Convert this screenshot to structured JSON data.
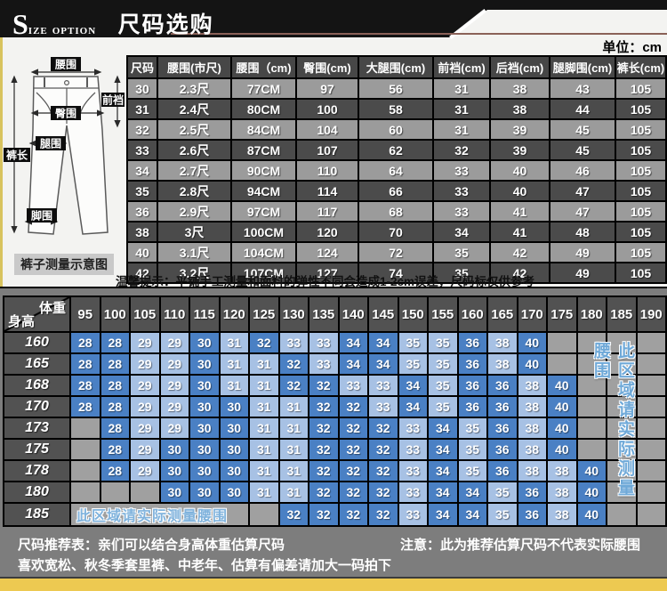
{
  "header": {
    "brand_initial": "S",
    "brand_rest": "ize option",
    "title": "尺码选购",
    "unit_label": "单位：cm"
  },
  "diagram": {
    "labels": [
      "腰围",
      "前裆",
      "臀围",
      "腿围",
      "裤长",
      "脚围"
    ],
    "caption": "裤子测量示意图"
  },
  "size_table": {
    "columns": [
      "尺码",
      "腰围(市尺)",
      "腰围（cm)",
      "臀围(cm)",
      "大腿围(cm)",
      "前裆(cm)",
      "后裆(cm)",
      "腿脚围(cm)",
      "裤长(cm)"
    ],
    "rows": [
      [
        "30",
        "2.3尺",
        "77CM",
        "97",
        "56",
        "31",
        "38",
        "43",
        "105"
      ],
      [
        "31",
        "2.4尺",
        "80CM",
        "100",
        "58",
        "31",
        "38",
        "44",
        "105"
      ],
      [
        "32",
        "2.5尺",
        "84CM",
        "104",
        "60",
        "31",
        "39",
        "45",
        "105"
      ],
      [
        "33",
        "2.6尺",
        "87CM",
        "107",
        "62",
        "32",
        "39",
        "45",
        "105"
      ],
      [
        "34",
        "2.7尺",
        "90CM",
        "110",
        "64",
        "33",
        "40",
        "46",
        "105"
      ],
      [
        "35",
        "2.8尺",
        "94CM",
        "114",
        "66",
        "33",
        "40",
        "47",
        "105"
      ],
      [
        "36",
        "2.9尺",
        "97CM",
        "117",
        "68",
        "33",
        "41",
        "47",
        "105"
      ],
      [
        "38",
        "3尺",
        "100CM",
        "120",
        "70",
        "34",
        "41",
        "48",
        "105"
      ],
      [
        "40",
        "3.1尺",
        "104CM",
        "124",
        "72",
        "35",
        "42",
        "49",
        "105"
      ],
      [
        "42",
        "3.2尺",
        "107CM",
        "127",
        "74",
        "35",
        "42",
        "49",
        "105"
      ]
    ]
  },
  "notice": "温馨提示：平铺手工测量和面料的弹性不同会造成1-2cm误差，尺码标仅供参考",
  "recommend_table": {
    "corner": {
      "top": "体重",
      "bottom": "身高"
    },
    "weights": [
      "95",
      "100",
      "105",
      "110",
      "115",
      "120",
      "125",
      "130",
      "135",
      "140",
      "145",
      "150",
      "155",
      "160",
      "165",
      "170",
      "175",
      "180",
      "185",
      "190"
    ],
    "rows": [
      {
        "height": "160",
        "start": 0,
        "values": [
          28,
          28,
          29,
          29,
          30,
          31,
          32,
          33,
          33,
          34,
          34,
          35,
          35,
          36,
          38,
          40
        ]
      },
      {
        "height": "165",
        "start": 0,
        "values": [
          28,
          28,
          29,
          29,
          30,
          31,
          31,
          32,
          33,
          34,
          34,
          35,
          35,
          36,
          38,
          40
        ]
      },
      {
        "height": "168",
        "start": 0,
        "values": [
          28,
          28,
          29,
          29,
          30,
          31,
          31,
          32,
          32,
          33,
          33,
          34,
          35,
          36,
          36,
          38,
          40
        ]
      },
      {
        "height": "170",
        "start": 0,
        "values": [
          28,
          28,
          29,
          29,
          30,
          30,
          31,
          31,
          32,
          32,
          33,
          34,
          35,
          36,
          36,
          38,
          40
        ]
      },
      {
        "height": "173",
        "start": 1,
        "values": [
          28,
          29,
          29,
          30,
          30,
          31,
          31,
          32,
          32,
          32,
          33,
          34,
          35,
          36,
          38,
          40
        ]
      },
      {
        "height": "175",
        "start": 1,
        "values": [
          28,
          29,
          30,
          30,
          30,
          31,
          31,
          32,
          32,
          32,
          33,
          34,
          35,
          36,
          38,
          40
        ]
      },
      {
        "height": "178",
        "start": 1,
        "values": [
          28,
          29,
          30,
          30,
          30,
          31,
          31,
          32,
          32,
          32,
          33,
          34,
          35,
          36,
          38,
          38,
          40
        ]
      },
      {
        "height": "180",
        "start": 3,
        "values": [
          30,
          30,
          30,
          31,
          31,
          32,
          32,
          32,
          33,
          34,
          34,
          35,
          36,
          38,
          40
        ]
      },
      {
        "height": "185",
        "start": 7,
        "values": [
          32,
          32,
          32,
          32,
          33,
          34,
          34,
          35,
          36,
          38,
          40
        ],
        "note_span": 6,
        "note": "此区域请实际测量腰围"
      }
    ],
    "side_note": "此区域请实际测量腰围"
  },
  "footer": {
    "line1_left": "尺码推荐表：亲们可以结合身高体重估算尺码",
    "line1_right": "注意：此为推荐估算尺码不代表实际腰围",
    "line2": "喜欢宽松、秋冬季套里裤、中老年、估算有偏差请加大一码拍下"
  },
  "colors": {
    "banner": "#141414",
    "accent_line": "#8a6158",
    "row_light": "#9b9b9b",
    "row_dark": "#4b4b4b",
    "cell_blue_dark": "#4a80c4",
    "cell_blue_light": "#a7c1e4",
    "note_blue": "#6fa9d8",
    "bottom_bg": "#7d7d7d",
    "yellow_strip": "#edc951"
  }
}
